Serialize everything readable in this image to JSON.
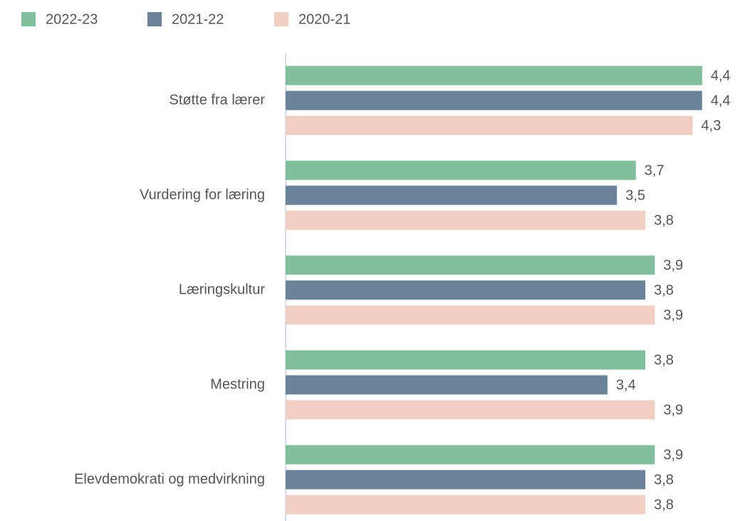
{
  "chart_data": {
    "type": "hbar",
    "categories": [
      "Støtte fra lærer",
      "Vurdering for læring",
      "Læringskultur",
      "Mestring",
      "Elevdemokrati og medvirkning"
    ],
    "series": [
      {
        "name": "2022-23",
        "color": "#7fbf9b",
        "values": [
          4.4,
          3.7,
          3.9,
          3.8,
          3.9
        ],
        "value_labels": [
          "4,4",
          "3,7",
          "3,9",
          "3,8",
          "3,9"
        ]
      },
      {
        "name": "2021-22",
        "color": "#6b8399",
        "values": [
          4.4,
          3.5,
          3.8,
          3.4,
          3.8
        ],
        "value_labels": [
          "4,4",
          "3,5",
          "3,8",
          "3,4",
          "3,8"
        ]
      },
      {
        "name": "2020-21",
        "color": "#f0cfc2",
        "values": [
          4.3,
          3.8,
          3.9,
          3.9,
          3.8
        ],
        "value_labels": [
          "4,3",
          "3,8",
          "3,9",
          "3,9",
          "3,8"
        ]
      }
    ],
    "xlim": [
      0,
      4.8
    ],
    "legend": "top-left"
  }
}
